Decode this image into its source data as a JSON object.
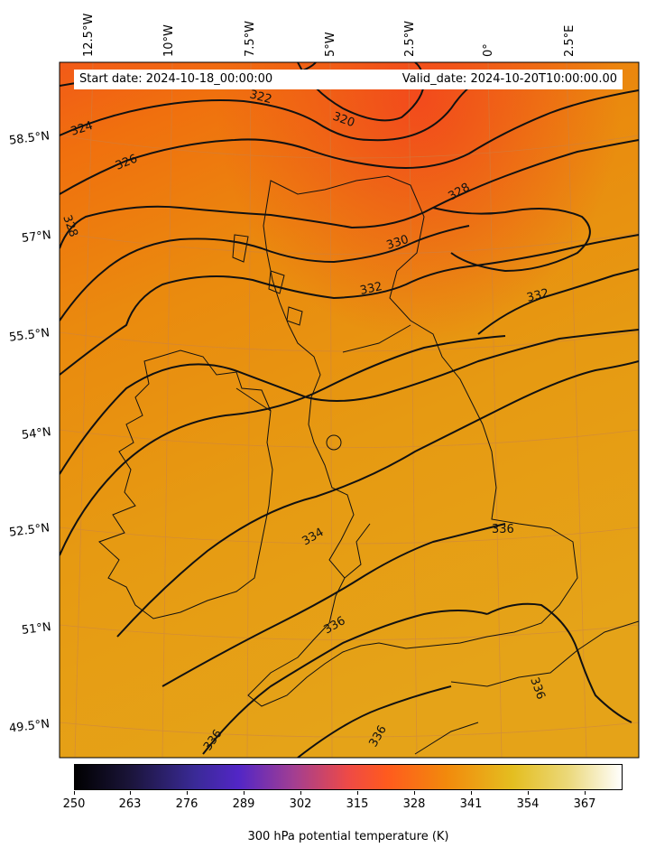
{
  "header": {
    "start_date": "Start date: 2024-10-18_00:00:00",
    "valid_date": "Valid_date: 2024-10-20T10:00:00.00"
  },
  "axes": {
    "longitudes": [
      "12.5°W",
      "10°W",
      "7.5°W",
      "5°W",
      "2.5°W",
      "0°",
      "2.5°E"
    ],
    "latitudes": [
      "58.5°N",
      "57°N",
      "55.5°N",
      "54°N",
      "52.5°N",
      "51°N",
      "49.5°N"
    ]
  },
  "contour_labels": [
    "324",
    "322",
    "320",
    "326",
    "328",
    "328",
    "330",
    "332",
    "332",
    "334",
    "336",
    "336",
    "336",
    "336",
    "336"
  ],
  "colorbar": {
    "ticks": [
      "250",
      "263",
      "276",
      "289",
      "302",
      "315",
      "328",
      "341",
      "354",
      "367"
    ],
    "label": "300 hPa potential temperature (K)",
    "colormap": "CMRmap"
  },
  "colors": {
    "warm_orange": "#f07a10",
    "hot_orange": "#f25a18",
    "yellow_orange": "#e8a51a",
    "contour_line": "#111111"
  }
}
